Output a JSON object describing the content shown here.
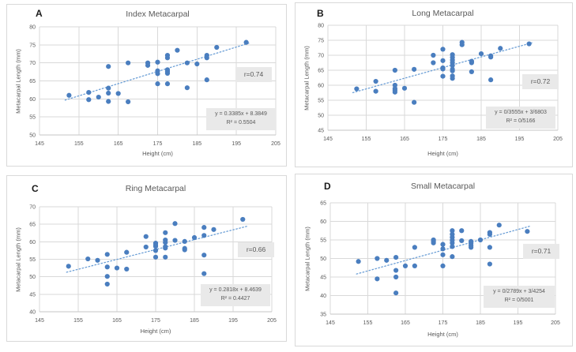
{
  "colors": {
    "marker": "#4a7ebf",
    "trendline": "#6c9fd6",
    "gridline": "#d9d9d9",
    "axis_line": "#c6c6c6",
    "axis_text": "#595959",
    "title_text": "#595959",
    "panel_border": "#d9d9d9",
    "label_box_bg": "#e9e9e9",
    "panel_label_text": "#1a1a1a"
  },
  "chart_data": [
    {
      "type": "scatter",
      "panel_label": "A",
      "title": "Index Metacarpal",
      "xlabel": "Height (cm)",
      "ylabel": "Metacarpal Length (mm)",
      "xlim": [
        145,
        205
      ],
      "ylim": [
        50,
        80
      ],
      "x_ticks": [
        145,
        155,
        165,
        175,
        185,
        195,
        205
      ],
      "y_ticks": [
        50,
        55,
        60,
        65,
        70,
        75,
        80
      ],
      "grid": true,
      "r_label": "r=0.74",
      "equation": "y = 0.3385x + 8.3849",
      "r_squared": "R² = 0.5504",
      "trendline": {
        "slope": 0.3385,
        "intercept": 8.3849,
        "x_start": 151.5,
        "x_end": 198.5,
        "style": "dotted"
      },
      "points": [
        [
          152.5,
          61
        ],
        [
          157.5,
          61.8
        ],
        [
          157.5,
          59.8
        ],
        [
          160,
          60.5
        ],
        [
          162.5,
          69
        ],
        [
          162.5,
          63
        ],
        [
          162.5,
          61.6
        ],
        [
          162.5,
          59.3
        ],
        [
          165,
          61.5
        ],
        [
          167.5,
          70
        ],
        [
          167.5,
          59.2
        ],
        [
          172.5,
          70
        ],
        [
          172.5,
          69.3
        ],
        [
          175,
          70.2
        ],
        [
          175,
          67.8
        ],
        [
          175,
          67
        ],
        [
          175,
          64.2
        ],
        [
          177.5,
          72.1
        ],
        [
          177.5,
          71.4
        ],
        [
          177.5,
          68.1
        ],
        [
          177.5,
          67.6
        ],
        [
          177.5,
          67.1
        ],
        [
          177.5,
          64.2
        ],
        [
          180,
          73.5
        ],
        [
          182.5,
          70
        ],
        [
          182.5,
          63.1
        ],
        [
          185,
          69.7
        ],
        [
          187.5,
          72.1
        ],
        [
          187.5,
          71.4
        ],
        [
          187.5,
          65.3
        ],
        [
          190,
          74.3
        ],
        [
          197.5,
          75.7
        ]
      ]
    },
    {
      "type": "scatter",
      "panel_label": "B",
      "title": "Long Metacarpal",
      "xlabel": "Height (cm)",
      "ylabel": "Metacarpal Length (mm)",
      "xlim": [
        145,
        205
      ],
      "ylim": [
        45,
        80
      ],
      "x_ticks": [
        145,
        155,
        165,
        175,
        185,
        195,
        205
      ],
      "y_ticks": [
        45,
        50,
        55,
        60,
        65,
        70,
        75,
        80
      ],
      "grid": true,
      "r_label": "r=0.72",
      "equation": "y = 0/3555x + 3/6803",
      "r_squared": "R² = 0/5166",
      "trendline": {
        "slope": 0.3555,
        "intercept": 3.6803,
        "x_start": 151.5,
        "x_end": 198.5,
        "style": "dotted"
      },
      "points": [
        [
          152.5,
          58.8
        ],
        [
          157.5,
          61.3
        ],
        [
          157.5,
          58
        ],
        [
          162.5,
          65
        ],
        [
          162.5,
          60
        ],
        [
          162.5,
          58.9
        ],
        [
          162.5,
          58.3
        ],
        [
          162.5,
          57.7
        ],
        [
          165,
          59
        ],
        [
          167.5,
          65.3
        ],
        [
          167.5,
          54.3
        ],
        [
          172.5,
          70
        ],
        [
          172.5,
          67.5
        ],
        [
          175,
          72
        ],
        [
          175,
          68.2
        ],
        [
          175,
          65.8
        ],
        [
          175,
          65.4
        ],
        [
          175,
          63
        ],
        [
          177.5,
          70.2
        ],
        [
          177.5,
          69.3
        ],
        [
          177.5,
          68.4
        ],
        [
          177.5,
          67.5
        ],
        [
          177.5,
          66.6
        ],
        [
          177.5,
          65.3
        ],
        [
          177.5,
          64.8
        ],
        [
          177.5,
          63.1
        ],
        [
          177.5,
          62.3
        ],
        [
          180,
          74.3
        ],
        [
          180,
          73.5
        ],
        [
          182.5,
          68
        ],
        [
          182.5,
          67.5
        ],
        [
          182.5,
          64.5
        ],
        [
          185,
          70.5
        ],
        [
          187.5,
          69.8
        ],
        [
          187.5,
          69.4
        ],
        [
          187.5,
          61.8
        ],
        [
          190,
          72.3
        ],
        [
          197.5,
          73.8
        ]
      ]
    },
    {
      "type": "scatter",
      "panel_label": "C",
      "title": "Ring Metacarpal",
      "xlabel": "Height (cm)",
      "ylabel": "Metacarpal Length (mm)",
      "xlim": [
        145,
        205
      ],
      "ylim": [
        40,
        70
      ],
      "x_ticks": [
        145,
        155,
        165,
        175,
        185,
        195,
        205
      ],
      "y_ticks": [
        40,
        45,
        50,
        55,
        60,
        65,
        70
      ],
      "grid": true,
      "r_label": "r=0.66",
      "equation": "y = 0.2818x + 8.4639",
      "r_squared": "R² = 0.4427",
      "trendline": {
        "slope": 0.2818,
        "intercept": 8.4639,
        "x_start": 152,
        "x_end": 198.5,
        "style": "dotted"
      },
      "points": [
        [
          152.5,
          53
        ],
        [
          157.5,
          55.1
        ],
        [
          160,
          54.7
        ],
        [
          162.5,
          56.4
        ],
        [
          162.5,
          52.8
        ],
        [
          162.5,
          50.1
        ],
        [
          162.5,
          47.9
        ],
        [
          165,
          52.5
        ],
        [
          167.5,
          57
        ],
        [
          167.5,
          52.2
        ],
        [
          172.5,
          61.5
        ],
        [
          172.5,
          58.5
        ],
        [
          175,
          59.6
        ],
        [
          175,
          59.1
        ],
        [
          175,
          58.7
        ],
        [
          175,
          57.5
        ],
        [
          175,
          55.6
        ],
        [
          177.5,
          62.6
        ],
        [
          177.5,
          60.5
        ],
        [
          177.5,
          59.8
        ],
        [
          177.5,
          58.6
        ],
        [
          177.5,
          58.2
        ],
        [
          177.5,
          55.6
        ],
        [
          180,
          65.2
        ],
        [
          180,
          60.4
        ],
        [
          182.5,
          60.1
        ],
        [
          182.5,
          58.1
        ],
        [
          182.5,
          57.7
        ],
        [
          185,
          61.2
        ],
        [
          187.5,
          64.1
        ],
        [
          187.5,
          61.8
        ],
        [
          187.5,
          56.2
        ],
        [
          187.5,
          50.9
        ],
        [
          190,
          63.5
        ],
        [
          197.5,
          66.4
        ]
      ]
    },
    {
      "type": "scatter",
      "panel_label": "D",
      "title": "Small Metacarpal",
      "xlabel": "Height (cm)",
      "ylabel": "Metacarpal Length (mm)",
      "xlim": [
        145,
        205
      ],
      "ylim": [
        35,
        65
      ],
      "x_ticks": [
        145,
        155,
        165,
        175,
        185,
        195,
        205
      ],
      "y_ticks": [
        35,
        40,
        45,
        50,
        55,
        60,
        65
      ],
      "grid": true,
      "r_label": "r=0.71",
      "equation": "y = 0/2789x + 3/4254",
      "r_squared": "R² = 0/5001",
      "trendline": {
        "slope": 0.2789,
        "intercept": 3.4254,
        "x_start": 152,
        "x_end": 198.5,
        "style": "dotted"
      },
      "points": [
        [
          152.5,
          49.2
        ],
        [
          157.5,
          50
        ],
        [
          157.5,
          44.5
        ],
        [
          160,
          49.5
        ],
        [
          162.5,
          50.3
        ],
        [
          162.5,
          46.8
        ],
        [
          162.5,
          45
        ],
        [
          162.5,
          40.7
        ],
        [
          165,
          48
        ],
        [
          167.5,
          53
        ],
        [
          167.5,
          48
        ],
        [
          172.5,
          55
        ],
        [
          172.5,
          54.6
        ],
        [
          172.5,
          54.2
        ],
        [
          175,
          53.8
        ],
        [
          175,
          52.6
        ],
        [
          175,
          51
        ],
        [
          175,
          48
        ],
        [
          177.5,
          57.5
        ],
        [
          177.5,
          56.5
        ],
        [
          177.5,
          55.7
        ],
        [
          177.5,
          54.9
        ],
        [
          177.5,
          54.2
        ],
        [
          177.5,
          53.2
        ],
        [
          177.5,
          50.5
        ],
        [
          180,
          57.5
        ],
        [
          180,
          54.8
        ],
        [
          182.5,
          54.6
        ],
        [
          182.5,
          54.1
        ],
        [
          182.5,
          53.5
        ],
        [
          182.5,
          53
        ],
        [
          185,
          55
        ],
        [
          187.5,
          57
        ],
        [
          187.5,
          56.5
        ],
        [
          187.5,
          53
        ],
        [
          187.5,
          48.5
        ],
        [
          190,
          59
        ],
        [
          197.5,
          57.3
        ]
      ]
    }
  ]
}
